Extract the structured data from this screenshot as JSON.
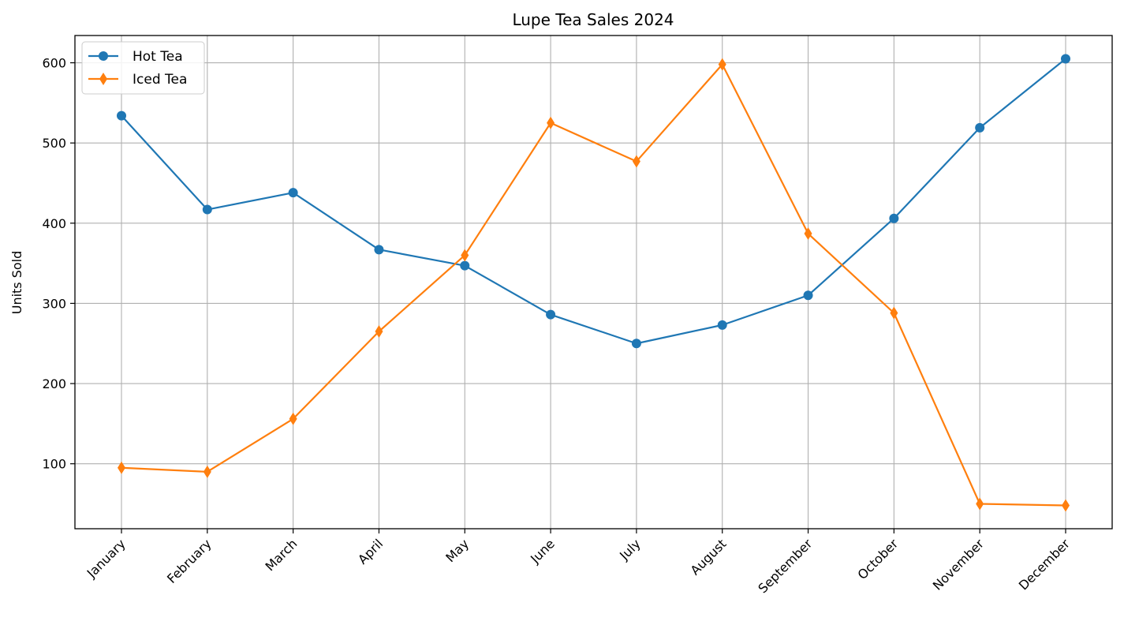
{
  "chart_data": {
    "type": "line",
    "title": "Lupe Tea Sales 2024",
    "xlabel": "",
    "ylabel": "Units Sold",
    "categories": [
      "January",
      "February",
      "March",
      "April",
      "May",
      "June",
      "July",
      "August",
      "September",
      "October",
      "November",
      "December"
    ],
    "series": [
      {
        "name": "Hot Tea",
        "color": "#1f77b4",
        "marker": "circle",
        "values": [
          534,
          417,
          438,
          367,
          347,
          286,
          250,
          273,
          310,
          406,
          519,
          605
        ]
      },
      {
        "name": "Iced Tea",
        "color": "#ff7f0e",
        "marker": "thin-diamond",
        "values": [
          95,
          90,
          156,
          265,
          360,
          525,
          477,
          598,
          387,
          288,
          50,
          48
        ]
      }
    ],
    "yticks": [
      100,
      200,
      300,
      400,
      500,
      600
    ],
    "ylim": [
      19,
      634
    ],
    "grid": true,
    "legend": "upper-left"
  }
}
